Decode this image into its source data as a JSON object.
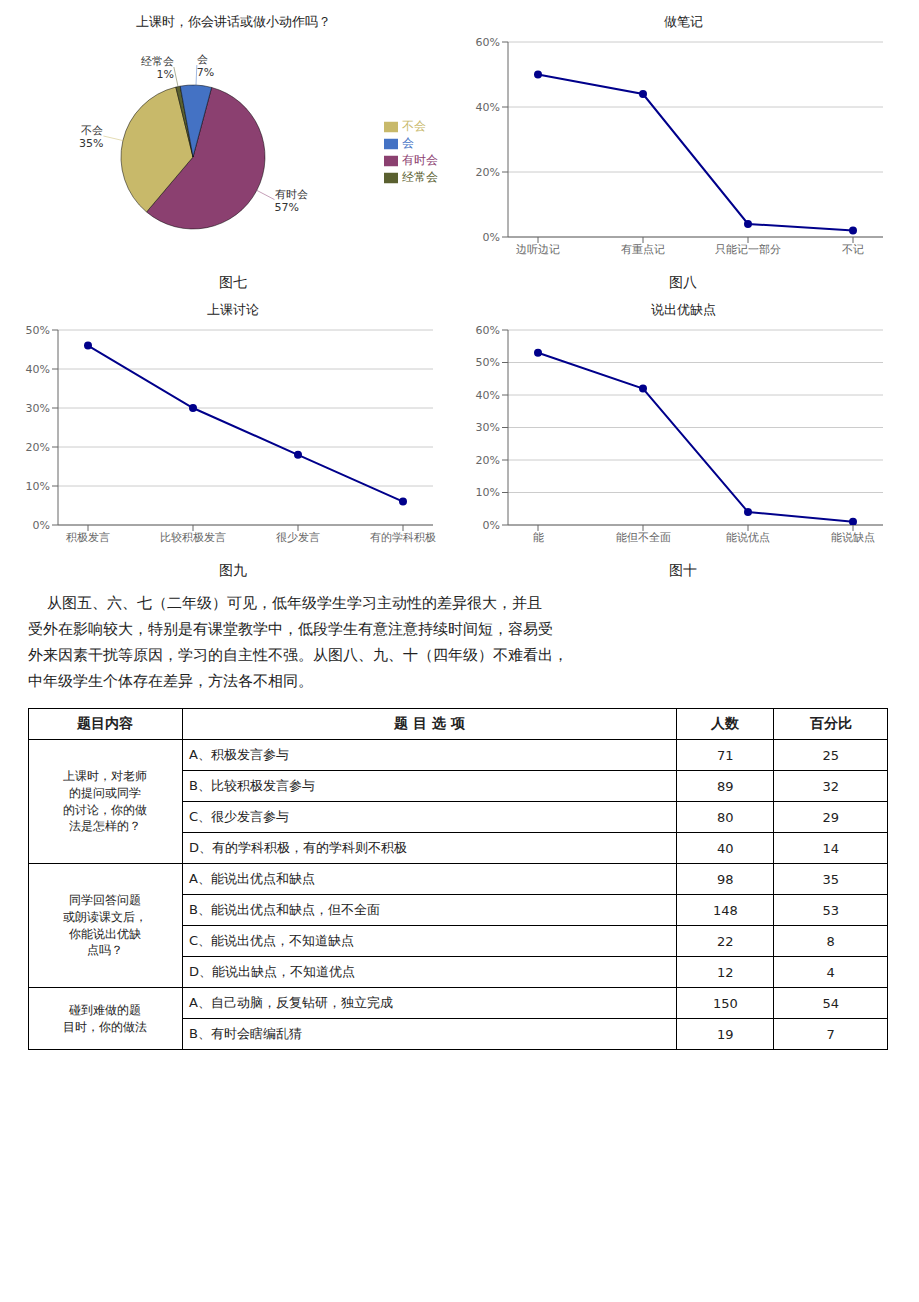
{
  "chart_data": [
    {
      "type": "pie",
      "title": "上课时，你会讲话或做小动作吗？",
      "categories": [
        "有时会",
        "不会",
        "经常会",
        "会"
      ],
      "values": [
        57,
        35,
        1,
        7
      ],
      "value_labels": [
        "57%",
        "35%",
        "1%",
        "7%"
      ],
      "colors": [
        "#8B4070",
        "#C8B96A",
        "#5A6030",
        "#4472c4"
      ],
      "data_labels": true,
      "legend": "right",
      "annotations": [
        "图七"
      ]
    },
    {
      "type": "line",
      "title": "做笔记",
      "categories": [
        "边听边记",
        "有重点记",
        "只能记一部分",
        "不记"
      ],
      "values": [
        0.5,
        0.44,
        0.04,
        0.02
      ],
      "color": "#00008b",
      "marker": "circle",
      "grid": true,
      "ylim": [
        0,
        0.6
      ],
      "yticks": [
        {
          "value": 0,
          "label": "0%"
        },
        {
          "value": 0.2,
          "label": "20%"
        },
        {
          "value": 0.4,
          "label": "40%"
        },
        {
          "value": 0.6,
          "label": "60%"
        }
      ],
      "annotations": [
        "图八"
      ]
    },
    {
      "type": "line",
      "title": "上课讨论",
      "categories": [
        "积极发言",
        "比较积极发言",
        "很少发言",
        "有的学科积极"
      ],
      "values": [
        0.46,
        0.3,
        0.18,
        0.06
      ],
      "color": "#00008b",
      "marker": "circle",
      "grid": true,
      "ylim": [
        0,
        0.5
      ],
      "yticks": [
        {
          "value": 0,
          "label": "0%"
        },
        {
          "value": 0.1,
          "label": "10%"
        },
        {
          "value": 0.2,
          "label": "20%"
        },
        {
          "value": 0.3,
          "label": "30%"
        },
        {
          "value": 0.4,
          "label": "40%"
        },
        {
          "value": 0.5,
          "label": "50%"
        }
      ],
      "annotations": [
        "图九"
      ]
    },
    {
      "type": "line",
      "title": "说出优缺点",
      "categories": [
        "能",
        "能但不全面",
        "能说优点",
        "能说缺点"
      ],
      "values": [
        0.53,
        0.42,
        0.04,
        0.01
      ],
      "color": "#00008b",
      "marker": "circle",
      "grid": true,
      "ylim": [
        0,
        0.6
      ],
      "yticks": [
        {
          "value": 0,
          "label": "0%"
        },
        {
          "value": 0.1,
          "label": "10%"
        },
        {
          "value": 0.2,
          "label": "20%"
        },
        {
          "value": 0.3,
          "label": "30%"
        },
        {
          "value": 0.4,
          "label": "40%"
        },
        {
          "value": 0.5,
          "label": "50%"
        },
        {
          "value": 0.6,
          "label": "60%"
        }
      ],
      "annotations": [
        "图十"
      ]
    },
    {
      "type": "text",
      "annotations": [
        "    从图五、六、七（二年级）可见，低年级学生学习主动性的差异很大，并且",
        "受外在影响较大，特别是有课堂教学中，低段学生有意注意持续时间短，容易受",
        "外来因素干扰等原因，学习的自主性不强。从图八、九、十（四年级）不难看出，",
        "中年级学生个体存在差异，方法各不相同。"
      ]
    },
    {
      "type": "table",
      "columns": [
        "题目内容",
        "题 目 选 项",
        "人数",
        "百分比"
      ],
      "groups": [
        {
          "title": "上课时，对老师\n的提问或同学\n的讨论，你的做\n法是怎样的？",
          "rows": [
            [
              "A、积极发言参与",
              71,
              25
            ],
            [
              "B、比较积极发言参与",
              89,
              32
            ],
            [
              "C、很少发言参与",
              80,
              29
            ],
            [
              "D、有的学科积极，有的学科则不积极",
              40,
              14
            ]
          ]
        },
        {
          "title": "同学回答问题\n或朗读课文后，\n你能说出优缺\n点吗？",
          "rows": [
            [
              "A、能说出优点和缺点",
              98,
              35
            ],
            [
              "B、能说出优点和缺点，但不全面",
              148,
              53
            ],
            [
              "C、能说出优点，不知道缺点",
              22,
              8
            ],
            [
              "D、能说出缺点，不知道优点",
              12,
              4
            ]
          ]
        },
        {
          "title": "碰到难做的题\n目时，你的做法",
          "rows": [
            [
              "A、自己动脑，反复钻研，独立完成",
              150,
              54
            ],
            [
              "B、有时会瞎编乱猜",
              19,
              7
            ]
          ]
        }
      ]
    }
  ]
}
